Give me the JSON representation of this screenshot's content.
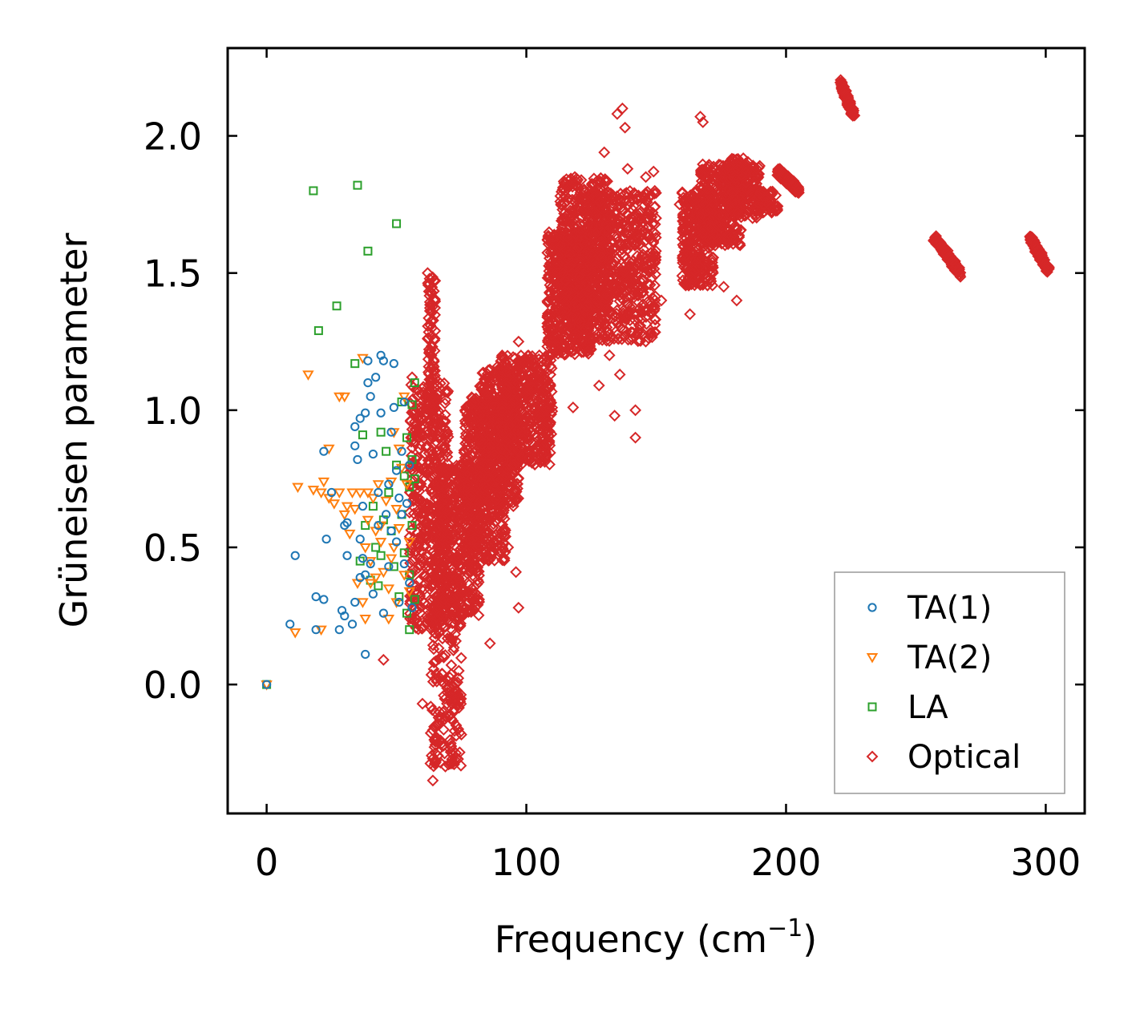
{
  "chart_data": {
    "type": "scatter",
    "xlabel": "Frequency (cm",
    "xlabel_sup": "−1",
    "xlabel_close": ")",
    "ylabel": "Grüneisen parameter",
    "xlim": [
      -15,
      315
    ],
    "ylim": [
      -0.47,
      2.32
    ],
    "xticks": [
      0,
      100,
      200,
      300
    ],
    "xtick_labels": [
      "0",
      "100",
      "200",
      "300"
    ],
    "yticks": [
      0.0,
      0.5,
      1.0,
      1.5,
      2.0
    ],
    "ytick_labels": [
      "0.0",
      "0.5",
      "1.0",
      "1.5",
      "2.0"
    ],
    "legend_position": "lower-right",
    "series": [
      {
        "name": "TA(1)",
        "marker": "circle",
        "color": "#1f77b4",
        "points": [
          [
            0,
            0.0
          ],
          [
            9,
            0.22
          ],
          [
            11,
            0.47
          ],
          [
            19,
            0.2
          ],
          [
            19,
            0.32
          ],
          [
            22,
            0.31
          ],
          [
            22,
            0.85
          ],
          [
            23,
            0.53
          ],
          [
            25,
            0.7
          ],
          [
            28,
            0.2
          ],
          [
            29,
            0.27
          ],
          [
            30,
            0.25
          ],
          [
            30,
            0.58
          ],
          [
            31,
            0.47
          ],
          [
            31,
            0.59
          ],
          [
            33,
            0.22
          ],
          [
            34,
            0.3
          ],
          [
            34,
            0.94
          ],
          [
            34,
            0.87
          ],
          [
            35,
            0.82
          ],
          [
            36,
            0.53
          ],
          [
            36,
            0.39
          ],
          [
            36,
            0.97
          ],
          [
            37,
            0.46
          ],
          [
            37,
            0.65
          ],
          [
            38,
            0.11
          ],
          [
            38,
            0.99
          ],
          [
            38,
            0.4
          ],
          [
            39,
            1.18
          ],
          [
            39,
            1.1
          ],
          [
            40,
            0.44
          ],
          [
            40,
            1.05
          ],
          [
            41,
            0.33
          ],
          [
            41,
            0.84
          ],
          [
            42,
            1.12
          ],
          [
            43,
            0.58
          ],
          [
            43,
            0.7
          ],
          [
            44,
            1.2
          ],
          [
            44,
            0.99
          ],
          [
            45,
            0.26
          ],
          [
            45,
            1.18
          ],
          [
            46,
            0.62
          ],
          [
            47,
            0.43
          ],
          [
            47,
            0.73
          ],
          [
            48,
            0.56
          ],
          [
            48,
            0.92
          ],
          [
            49,
            1.17
          ],
          [
            49,
            1.01
          ],
          [
            50,
            0.78
          ],
          [
            50,
            0.52
          ],
          [
            51,
            0.3
          ],
          [
            51,
            0.68
          ],
          [
            52,
            0.85
          ],
          [
            52,
            0.62
          ],
          [
            53,
            0.44
          ],
          [
            53,
            1.03
          ],
          [
            54,
            0.66
          ],
          [
            55,
            0.37
          ],
          [
            55,
            0.8
          ],
          [
            56,
            0.28
          ]
        ]
      },
      {
        "name": "TA(2)",
        "marker": "triangle-down",
        "color": "#ff7f0e",
        "points": [
          [
            0,
            0.0
          ],
          [
            11,
            0.19
          ],
          [
            12,
            0.72
          ],
          [
            16,
            1.13
          ],
          [
            18,
            0.71
          ],
          [
            21,
            0.2
          ],
          [
            21,
            0.7
          ],
          [
            22,
            0.74
          ],
          [
            24,
            0.86
          ],
          [
            24,
            0.68
          ],
          [
            26,
            0.66
          ],
          [
            28,
            1.05
          ],
          [
            28,
            0.7
          ],
          [
            30,
            0.62
          ],
          [
            30,
            1.05
          ],
          [
            31,
            0.65
          ],
          [
            32,
            0.55
          ],
          [
            33,
            0.7
          ],
          [
            34,
            0.64
          ],
          [
            35,
            0.37
          ],
          [
            36,
            0.7
          ],
          [
            37,
            0.3
          ],
          [
            37,
            1.19
          ],
          [
            38,
            0.24
          ],
          [
            38,
            0.5
          ],
          [
            39,
            0.6
          ],
          [
            39,
            0.7
          ],
          [
            40,
            0.37
          ],
          [
            40,
            0.45
          ],
          [
            41,
            0.68
          ],
          [
            42,
            0.56
          ],
          [
            42,
            0.39
          ],
          [
            43,
            0.73
          ],
          [
            44,
            0.52
          ],
          [
            44,
            0.58
          ],
          [
            45,
            0.41
          ],
          [
            46,
            0.67
          ],
          [
            47,
            0.24
          ],
          [
            47,
            0.35
          ],
          [
            48,
            0.74
          ],
          [
            48,
            0.46
          ],
          [
            49,
            0.5
          ],
          [
            49,
            0.92
          ],
          [
            50,
            0.3
          ],
          [
            50,
            0.64
          ],
          [
            51,
            0.57
          ],
          [
            51,
            0.86
          ],
          [
            52,
            0.79
          ],
          [
            53,
            0.4
          ],
          [
            53,
            1.05
          ],
          [
            54,
            0.73
          ],
          [
            55,
            0.52
          ],
          [
            55,
            0.34
          ]
        ]
      },
      {
        "name": "LA",
        "marker": "square",
        "color": "#2ca02c",
        "points": [
          [
            0,
            0.0
          ],
          [
            18,
            1.8
          ],
          [
            20,
            1.29
          ],
          [
            27,
            1.38
          ],
          [
            34,
            1.17
          ],
          [
            35,
            1.82
          ],
          [
            36,
            0.45
          ],
          [
            37,
            0.91
          ],
          [
            38,
            0.58
          ],
          [
            39,
            1.58
          ],
          [
            40,
            0.38
          ],
          [
            41,
            0.65
          ],
          [
            42,
            0.5
          ],
          [
            43,
            0.36
          ],
          [
            44,
            0.47
          ],
          [
            44,
            0.92
          ],
          [
            45,
            0.6
          ],
          [
            46,
            0.85
          ],
          [
            47,
            0.7
          ],
          [
            48,
            0.56
          ],
          [
            49,
            0.43
          ],
          [
            50,
            1.68
          ],
          [
            50,
            0.8
          ],
          [
            51,
            0.32
          ],
          [
            52,
            0.62
          ],
          [
            52,
            1.03
          ],
          [
            53,
            0.48
          ],
          [
            53,
            0.76
          ],
          [
            54,
            0.26
          ],
          [
            54,
            0.9
          ],
          [
            55,
            0.4
          ],
          [
            55,
            0.72
          ],
          [
            55,
            0.2
          ],
          [
            56,
            0.58
          ],
          [
            56,
            1.02
          ],
          [
            56,
            0.82
          ],
          [
            57,
            0.31
          ],
          [
            57,
            0.75
          ],
          [
            57,
            1.1
          ]
        ]
      },
      {
        "name": "Optical",
        "marker": "diamond",
        "color": "#d62728",
        "clusters": [
          {
            "x": [
              55,
              70
            ],
            "y": [
              0.2,
              1.1
            ],
            "n": 520
          },
          {
            "x": [
              62,
              65
            ],
            "y": [
              1.0,
              1.5
            ],
            "n": 90
          },
          {
            "x": [
              63,
              75
            ],
            "y": [
              -0.3,
              0.4
            ],
            "n": 200
          },
          {
            "x": [
              66,
              82
            ],
            "y": [
              0.25,
              0.8
            ],
            "n": 420
          },
          {
            "x": [
              76,
              92
            ],
            "y": [
              0.45,
              1.05
            ],
            "n": 460
          },
          {
            "x": [
              82,
              97
            ],
            "y": [
              0.65,
              1.15
            ],
            "n": 430
          },
          {
            "x": [
              90,
              110
            ],
            "y": [
              0.8,
              1.2
            ],
            "n": 470
          },
          {
            "x": [
              108,
              125
            ],
            "y": [
              1.2,
              1.65
            ],
            "n": 520
          },
          {
            "x": [
              113,
              132
            ],
            "y": [
              1.35,
              1.85
            ],
            "n": 520
          },
          {
            "x": [
              125,
              150
            ],
            "y": [
              1.25,
              1.8
            ],
            "n": 560
          },
          {
            "x": [
              160,
              172
            ],
            "y": [
              1.45,
              1.8
            ],
            "n": 300
          },
          {
            "x": [
              167,
              183
            ],
            "y": [
              1.6,
              1.9
            ],
            "n": 320
          },
          {
            "x": [
              178,
              190
            ],
            "y": [
              1.7,
              1.92
            ],
            "n": 220
          },
          {
            "x": [
              188,
              197
            ],
            "y": [
              1.72,
              1.8
            ],
            "n": 60
          }
        ],
        "segments": [
          {
            "from": [
              197,
              1.87
            ],
            "to": [
              205,
              1.8
            ],
            "n": 140
          },
          {
            "from": [
              221,
              2.19
            ],
            "to": [
              226,
              2.08
            ],
            "n": 100
          },
          {
            "from": [
              257,
              1.63
            ],
            "to": [
              267,
              1.5
            ],
            "n": 120
          },
          {
            "from": [
              294,
              1.63
            ],
            "to": [
              301,
              1.51
            ],
            "n": 100
          }
        ],
        "points": [
          [
            45,
            0.09
          ],
          [
            56,
            1.12
          ],
          [
            60,
            -0.07
          ],
          [
            62,
            1.5
          ],
          [
            64,
            -0.27
          ],
          [
            64,
            -0.35
          ],
          [
            65,
            -0.25
          ],
          [
            65,
            -0.22
          ],
          [
            65,
            -0.15
          ],
          [
            72,
            -0.1
          ],
          [
            74,
            0.05
          ],
          [
            78,
            0.9
          ],
          [
            80,
            1.04
          ],
          [
            86,
            0.15
          ],
          [
            89,
            1.16
          ],
          [
            93,
            0.5
          ],
          [
            95,
            0.65
          ],
          [
            96,
            0.41
          ],
          [
            97,
            0.28
          ],
          [
            97,
            1.25
          ],
          [
            105,
            1.2
          ],
          [
            106,
            0.9
          ],
          [
            110,
            1.62
          ],
          [
            111,
            1.43
          ],
          [
            114,
            1.6
          ],
          [
            118,
            1.01
          ],
          [
            121,
            1.78
          ],
          [
            124,
            1.25
          ],
          [
            128,
            1.09
          ],
          [
            130,
            1.94
          ],
          [
            132,
            1.2
          ],
          [
            134,
            0.98
          ],
          [
            135,
            2.08
          ],
          [
            136,
            1.13
          ],
          [
            137,
            2.1
          ],
          [
            138,
            2.03
          ],
          [
            139,
            1.88
          ],
          [
            142,
            1.0
          ],
          [
            142,
            0.9
          ],
          [
            146,
            1.85
          ],
          [
            149,
            1.87
          ],
          [
            152,
            1.4
          ],
          [
            159,
            1.75
          ],
          [
            163,
            1.35
          ],
          [
            167,
            2.07
          ],
          [
            168,
            2.05
          ],
          [
            176,
            1.45
          ],
          [
            181,
            1.4
          ]
        ]
      }
    ]
  }
}
